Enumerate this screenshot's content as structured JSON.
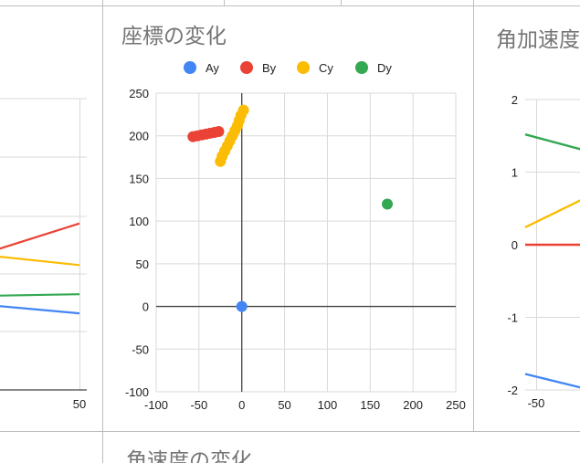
{
  "headers": {
    "left": "",
    "center": "座標の変化",
    "right": "角加速度",
    "bottom": "角速度の変化"
  },
  "colors": {
    "Ay": "#4285f4",
    "By": "#ea4335",
    "Cy": "#fbbc04",
    "Dy": "#34a853"
  },
  "chart_data": [
    {
      "type": "line",
      "title": "",
      "ylim": [
        -100,
        250
      ],
      "series": [
        {
          "name": "",
          "x": [
            -100,
            50
          ],
          "y": [
            10,
            100
          ]
        },
        {
          "name": "",
          "x": [
            -100,
            50
          ],
          "y": [
            80,
            50
          ]
        },
        {
          "name": "",
          "x": [
            -100,
            50
          ],
          "y": [
            10,
            15
          ]
        },
        {
          "name": "",
          "x": [
            -100,
            50
          ],
          "y": [
            18,
            -8
          ]
        }
      ],
      "x_ticks": [
        "50"
      ]
    },
    {
      "type": "scatter",
      "title": "座標の変化",
      "xlim": [
        -100,
        250
      ],
      "ylim": [
        -100,
        250
      ],
      "x_ticks": [
        -100,
        -50,
        0,
        50,
        100,
        150,
        200,
        250
      ],
      "y_ticks": [
        -100,
        -50,
        0,
        50,
        100,
        150,
        200,
        250
      ],
      "legend_position": "top",
      "series": [
        {
          "name": "Ay",
          "points": [
            [
              0,
              0
            ]
          ]
        },
        {
          "name": "By",
          "points": [
            [
              -57,
              199
            ],
            [
              -52,
              200
            ],
            [
              -47,
              201
            ],
            [
              -42,
              202
            ],
            [
              -37,
              203
            ],
            [
              -32,
              204
            ],
            [
              -27,
              205
            ]
          ]
        },
        {
          "name": "Cy",
          "points": [
            [
              -25,
              170
            ],
            [
              -23,
              176
            ],
            [
              -20,
              182
            ],
            [
              -17,
              188
            ],
            [
              -14,
              194
            ],
            [
              -11,
              200
            ],
            [
              -8,
              206
            ],
            [
              -5,
              212
            ],
            [
              -3,
              218
            ],
            [
              -1,
              224
            ],
            [
              2,
              230
            ]
          ]
        },
        {
          "name": "Dy",
          "points": [
            [
              170,
              120
            ]
          ]
        }
      ]
    },
    {
      "type": "line",
      "title": "角加速度",
      "ylim": [
        -2,
        2
      ],
      "y_ticks": [
        "2",
        "1",
        "0",
        "-1",
        "-2"
      ],
      "x_ticks": [
        "-50"
      ],
      "series": [
        {
          "name": "",
          "points": [
            [
              0,
              1.52
            ],
            [
              1,
              1.3
            ]
          ]
        },
        {
          "name": "",
          "points": [
            [
              0,
              0.24
            ],
            [
              1,
              0.64
            ]
          ]
        },
        {
          "name": "",
          "points": [
            [
              0,
              0
            ],
            [
              1,
              0
            ]
          ]
        },
        {
          "name": "",
          "points": [
            [
              0,
              -1.78
            ],
            [
              1,
              -1.98
            ]
          ]
        }
      ]
    }
  ]
}
